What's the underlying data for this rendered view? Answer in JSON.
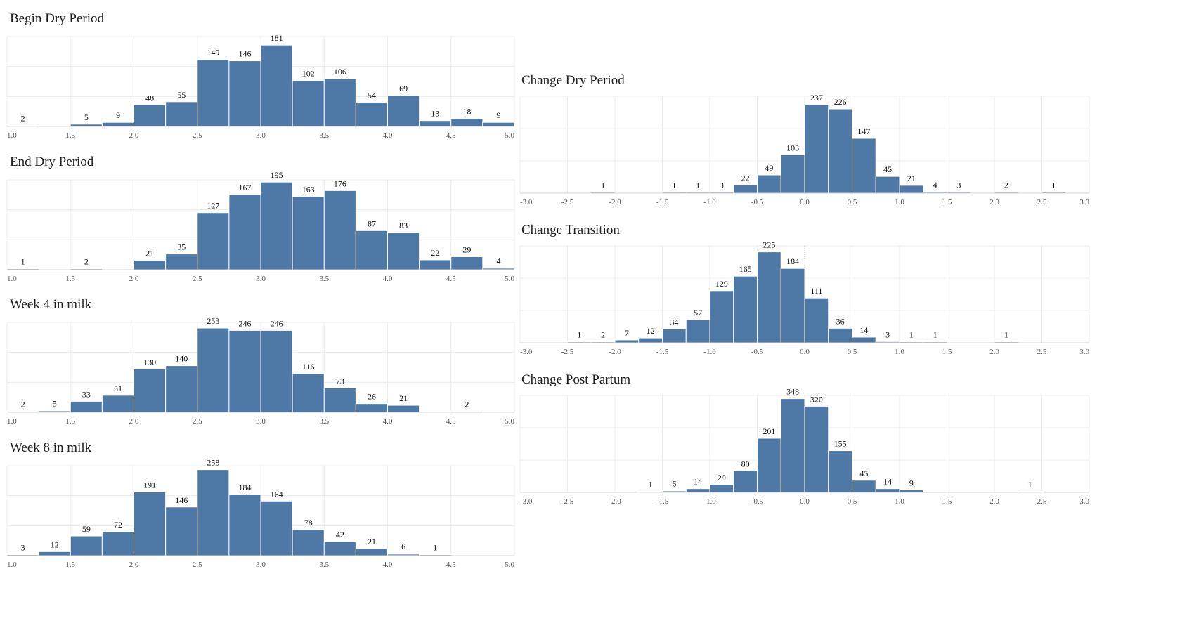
{
  "chart_data": [
    {
      "type": "bar",
      "title": "Begin Dry Period",
      "xlabel": "",
      "ylabel": "",
      "xlim": [
        1.0,
        5.0
      ],
      "bin_width": 0.25,
      "x_ticks": [
        "1.0",
        "1.5",
        "2.0",
        "2.5",
        "3.0",
        "3.5",
        "4.0",
        "4.5",
        "5.0"
      ],
      "bins": [
        1.0,
        1.25,
        1.5,
        1.75,
        2.0,
        2.25,
        2.5,
        2.75,
        3.0,
        3.25,
        3.5,
        3.75,
        4.0,
        4.25,
        4.5,
        4.75
      ],
      "values": [
        2,
        0,
        5,
        9,
        48,
        55,
        149,
        146,
        181,
        102,
        106,
        54,
        69,
        13,
        18,
        9
      ],
      "ylim": [
        0,
        200
      ],
      "grid": true
    },
    {
      "type": "bar",
      "title": "End Dry Period",
      "xlabel": "",
      "ylabel": "",
      "xlim": [
        1.0,
        5.0
      ],
      "bin_width": 0.25,
      "x_ticks": [
        "1.0",
        "1.5",
        "2.0",
        "2.5",
        "3.0",
        "3.5",
        "4.0",
        "4.5",
        "5.0"
      ],
      "bins": [
        1.0,
        1.25,
        1.5,
        1.75,
        2.0,
        2.25,
        2.5,
        2.75,
        3.0,
        3.25,
        3.5,
        3.75,
        4.0,
        4.25,
        4.5,
        4.75
      ],
      "values": [
        1,
        0,
        2,
        0,
        21,
        35,
        127,
        167,
        195,
        163,
        176,
        87,
        83,
        22,
        29,
        4
      ],
      "ylim": [
        0,
        200
      ],
      "grid": true
    },
    {
      "type": "bar",
      "title": "Week 4 in milk",
      "xlabel": "",
      "ylabel": "",
      "xlim": [
        1.0,
        5.0
      ],
      "bin_width": 0.25,
      "x_ticks": [
        "1.0",
        "1.5",
        "2.0",
        "2.5",
        "3.0",
        "3.5",
        "4.0",
        "4.5",
        "5.0"
      ],
      "bins": [
        1.0,
        1.25,
        1.5,
        1.75,
        2.0,
        2.25,
        2.5,
        2.75,
        3.0,
        3.25,
        3.5,
        3.75,
        4.0,
        4.25,
        4.5,
        4.75
      ],
      "values": [
        2,
        5,
        33,
        51,
        130,
        140,
        253,
        246,
        246,
        116,
        73,
        26,
        21,
        0,
        2,
        0
      ],
      "ylim": [
        0,
        270
      ],
      "grid": true
    },
    {
      "type": "bar",
      "title": "Week 8 in milk",
      "xlabel": "",
      "ylabel": "",
      "xlim": [
        1.0,
        5.0
      ],
      "bin_width": 0.25,
      "x_ticks": [
        "1.0",
        "1.5",
        "2.0",
        "2.5",
        "3.0",
        "3.5",
        "4.0",
        "4.5",
        "5.0"
      ],
      "bins": [
        1.0,
        1.25,
        1.5,
        1.75,
        2.0,
        2.25,
        2.5,
        2.75,
        3.0,
        3.25,
        3.5,
        3.75,
        4.0,
        4.25,
        4.5,
        4.75
      ],
      "values": [
        3,
        12,
        59,
        72,
        191,
        146,
        258,
        184,
        164,
        78,
        42,
        21,
        6,
        1,
        0,
        0
      ],
      "ylim": [
        0,
        270
      ],
      "grid": true
    },
    {
      "type": "bar",
      "title": "Change Dry Period",
      "xlabel": "",
      "ylabel": "",
      "xlim": [
        -3.0,
        3.0
      ],
      "bin_width": 0.25,
      "x_ticks": [
        "-3.0",
        "-2.5",
        "-2.0",
        "-1.5",
        "-1.0",
        "-0.5",
        "0.0",
        "0.5",
        "1.0",
        "1.5",
        "2.0",
        "2.5",
        "3.0"
      ],
      "bins": [
        -2.25,
        -1.5,
        -1.25,
        -1.0,
        -0.75,
        -0.5,
        -0.25,
        0.0,
        0.25,
        0.5,
        0.75,
        1.0,
        1.25,
        1.5,
        2.0,
        2.5
      ],
      "values": [
        1,
        1,
        1,
        3,
        22,
        49,
        103,
        237,
        226,
        147,
        45,
        21,
        4,
        3,
        2,
        1
      ],
      "ylim": [
        0,
        260
      ],
      "grid": true
    },
    {
      "type": "bar",
      "title": "Change Transition",
      "xlabel": "",
      "ylabel": "",
      "xlim": [
        -3.0,
        3.0
      ],
      "bin_width": 0.25,
      "x_ticks": [
        "-3.0",
        "-2.5",
        "-2.0",
        "-1.5",
        "-1.0",
        "-0.5",
        "0.0",
        "0.5",
        "1.0",
        "1.5",
        "2.0",
        "2.5",
        "3.0"
      ],
      "bins": [
        -2.5,
        -2.25,
        -2.0,
        -1.75,
        -1.5,
        -1.25,
        -1.0,
        -0.75,
        -0.5,
        -0.25,
        0.0,
        0.25,
        0.5,
        0.75,
        1.0,
        1.25,
        2.0
      ],
      "values": [
        1,
        2,
        7,
        12,
        34,
        57,
        129,
        165,
        225,
        184,
        111,
        36,
        14,
        3,
        1,
        1,
        1
      ],
      "ylim": [
        0,
        240
      ],
      "grid": true,
      "reference_line_x": 0.0
    },
    {
      "type": "bar",
      "title": "Change Post Partum",
      "xlabel": "",
      "ylabel": "",
      "xlim": [
        -3.0,
        3.0
      ],
      "bin_width": 0.25,
      "x_ticks": [
        "-3.0",
        "-2.5",
        "-2.0",
        "-1.5",
        "-1.0",
        "-0.5",
        "0.0",
        "0.5",
        "1.0",
        "1.5",
        "2.0",
        "2.5",
        "3.0"
      ],
      "bins": [
        -1.75,
        -1.5,
        -1.25,
        -1.0,
        -0.75,
        -0.5,
        -0.25,
        0.0,
        0.25,
        0.5,
        0.75,
        1.0,
        2.25
      ],
      "values": [
        1,
        6,
        14,
        29,
        80,
        201,
        348,
        320,
        155,
        45,
        14,
        9,
        1
      ],
      "ylim": [
        0,
        360
      ],
      "grid": true
    }
  ]
}
